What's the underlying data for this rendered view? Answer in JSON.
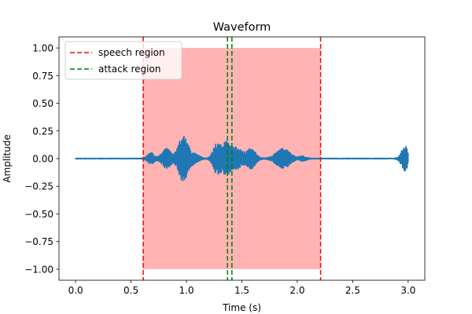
{
  "chart_data": {
    "type": "line",
    "title": "Waveform",
    "xlabel": "Time (s)",
    "ylabel": "Amplitude",
    "xlim": [
      -0.15,
      3.15
    ],
    "ylim": [
      -1.1,
      1.1
    ],
    "xticks": [
      0.0,
      0.5,
      1.0,
      1.5,
      2.0,
      2.5,
      3.0
    ],
    "xtick_labels": [
      "0.0",
      "0.5",
      "1.0",
      "1.5",
      "2.0",
      "2.5",
      "3.0"
    ],
    "yticks": [
      1.0,
      0.75,
      0.5,
      0.25,
      0.0,
      -0.25,
      -0.5,
      -0.75,
      -1.0
    ],
    "ytick_labels": [
      "1.00",
      "0.75",
      "0.50",
      "0.25",
      "0.00",
      "−0.25",
      "−0.50",
      "−0.75",
      "−1.00"
    ],
    "grid": false,
    "legend_position": "top-left",
    "speech_region": {
      "label": "speech region",
      "start": 0.61,
      "end": 2.21,
      "color": "#ff0000",
      "fill": "#ff9999",
      "fill_opacity": 0.75,
      "y_range": [
        -1.0,
        1.0
      ]
    },
    "attack_region": {
      "label": "attack region",
      "start": 1.37,
      "end": 1.41,
      "color": "#008000"
    },
    "waveform": {
      "name": "waveform",
      "color": "#1f77b4",
      "t_start": 0.0,
      "t_end": 3.0,
      "baseline_noise": 0.008,
      "bursts": [
        {
          "t": 0.68,
          "amp": 0.05,
          "width": 0.03
        },
        {
          "t": 0.82,
          "amp": 0.09,
          "width": 0.04
        },
        {
          "t": 0.97,
          "amp": 0.21,
          "width": 0.04
        },
        {
          "t": 1.07,
          "amp": 0.04,
          "width": 0.04
        },
        {
          "t": 1.27,
          "amp": 0.13,
          "width": 0.03
        },
        {
          "t": 1.36,
          "amp": 0.15,
          "width": 0.04
        },
        {
          "t": 1.46,
          "amp": 0.09,
          "width": 0.04
        },
        {
          "t": 1.58,
          "amp": 0.09,
          "width": 0.04
        },
        {
          "t": 1.87,
          "amp": 0.09,
          "width": 0.06
        },
        {
          "t": 2.05,
          "amp": 0.02,
          "width": 0.03
        },
        {
          "t": 2.97,
          "amp": 0.11,
          "width": 0.03
        }
      ]
    }
  }
}
